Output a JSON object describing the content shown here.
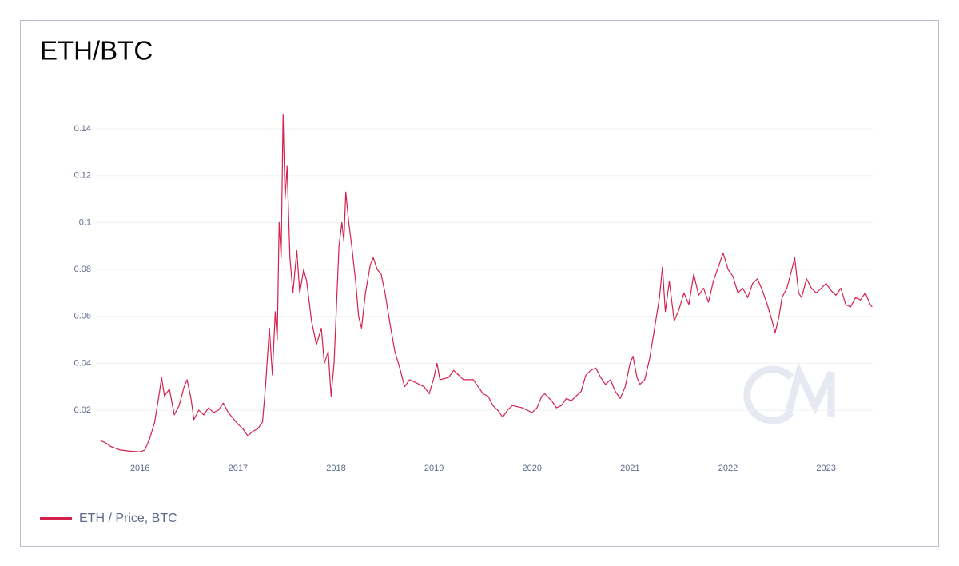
{
  "chart_data": {
    "type": "line",
    "title": "ETH/BTC",
    "xlim": [
      2015.55,
      2023.5
    ],
    "xticks": [
      2016,
      2017,
      2018,
      2019,
      2020,
      2021,
      2022,
      2023
    ],
    "ylim": [
      0,
      0.15
    ],
    "yticks": [
      0.02,
      0.04,
      0.06,
      0.08,
      0.1,
      0.12,
      0.14
    ],
    "grid": true,
    "legend": "bottom-left",
    "x": [
      2015.6,
      2015.65,
      2015.7,
      2015.8,
      2015.9,
      2016.0,
      2016.05,
      2016.1,
      2016.15,
      2016.2,
      2016.22,
      2016.25,
      2016.3,
      2016.35,
      2016.4,
      2016.45,
      2016.48,
      2016.52,
      2016.55,
      2016.6,
      2016.65,
      2016.7,
      2016.75,
      2016.8,
      2016.85,
      2016.9,
      2017.0,
      2017.05,
      2017.1,
      2017.15,
      2017.2,
      2017.25,
      2017.28,
      2017.32,
      2017.35,
      2017.38,
      2017.4,
      2017.42,
      2017.44,
      2017.46,
      2017.48,
      2017.5,
      2017.53,
      2017.56,
      2017.6,
      2017.63,
      2017.67,
      2017.7,
      2017.75,
      2017.8,
      2017.85,
      2017.88,
      2017.92,
      2017.95,
      2017.98,
      2018.0,
      2018.03,
      2018.06,
      2018.08,
      2018.1,
      2018.13,
      2018.16,
      2018.2,
      2018.23,
      2018.26,
      2018.3,
      2018.35,
      2018.38,
      2018.42,
      2018.46,
      2018.5,
      2018.55,
      2018.6,
      2018.65,
      2018.7,
      2018.75,
      2018.8,
      2018.9,
      2018.95,
      2019.0,
      2019.03,
      2019.06,
      2019.15,
      2019.2,
      2019.3,
      2019.4,
      2019.45,
      2019.5,
      2019.55,
      2019.6,
      2019.65,
      2019.7,
      2019.75,
      2019.8,
      2019.9,
      2020.0,
      2020.05,
      2020.1,
      2020.13,
      2020.2,
      2020.25,
      2020.3,
      2020.35,
      2020.4,
      2020.45,
      2020.5,
      2020.55,
      2020.6,
      2020.65,
      2020.7,
      2020.75,
      2020.8,
      2020.85,
      2020.9,
      2020.95,
      2021.0,
      2021.03,
      2021.07,
      2021.1,
      2021.15,
      2021.2,
      2021.25,
      2021.3,
      2021.33,
      2021.36,
      2021.4,
      2021.45,
      2021.5,
      2021.55,
      2021.6,
      2021.65,
      2021.7,
      2021.75,
      2021.8,
      2021.85,
      2021.9,
      2021.95,
      2022.0,
      2022.05,
      2022.1,
      2022.15,
      2022.2,
      2022.25,
      2022.3,
      2022.35,
      2022.4,
      2022.45,
      2022.48,
      2022.52,
      2022.55,
      2022.6,
      2022.65,
      2022.68,
      2022.72,
      2022.75,
      2022.8,
      2022.85,
      2022.9,
      2022.95,
      2023.0,
      2023.05,
      2023.1,
      2023.15,
      2023.2,
      2023.25,
      2023.3,
      2023.35,
      2023.4,
      2023.45,
      2023.47
    ],
    "series": [
      {
        "name": "ETH / Price, BTC",
        "color": "#d6204e",
        "values": [
          0.007,
          0.006,
          0.0045,
          0.003,
          0.0025,
          0.0022,
          0.003,
          0.008,
          0.015,
          0.028,
          0.034,
          0.026,
          0.029,
          0.018,
          0.022,
          0.03,
          0.033,
          0.025,
          0.016,
          0.02,
          0.018,
          0.021,
          0.019,
          0.02,
          0.023,
          0.019,
          0.014,
          0.012,
          0.009,
          0.011,
          0.012,
          0.015,
          0.03,
          0.055,
          0.035,
          0.062,
          0.05,
          0.1,
          0.085,
          0.146,
          0.11,
          0.124,
          0.085,
          0.07,
          0.088,
          0.07,
          0.08,
          0.075,
          0.058,
          0.048,
          0.055,
          0.04,
          0.045,
          0.026,
          0.04,
          0.06,
          0.09,
          0.1,
          0.092,
          0.113,
          0.1,
          0.09,
          0.075,
          0.06,
          0.055,
          0.07,
          0.082,
          0.085,
          0.08,
          0.078,
          0.07,
          0.057,
          0.045,
          0.038,
          0.03,
          0.033,
          0.032,
          0.03,
          0.027,
          0.034,
          0.04,
          0.033,
          0.034,
          0.037,
          0.033,
          0.033,
          0.03,
          0.027,
          0.026,
          0.022,
          0.02,
          0.017,
          0.02,
          0.022,
          0.021,
          0.019,
          0.021,
          0.026,
          0.027,
          0.024,
          0.021,
          0.022,
          0.025,
          0.024,
          0.026,
          0.028,
          0.035,
          0.037,
          0.038,
          0.034,
          0.031,
          0.033,
          0.028,
          0.025,
          0.03,
          0.04,
          0.043,
          0.034,
          0.031,
          0.033,
          0.042,
          0.055,
          0.068,
          0.081,
          0.062,
          0.075,
          0.058,
          0.063,
          0.07,
          0.065,
          0.078,
          0.069,
          0.072,
          0.066,
          0.075,
          0.081,
          0.087,
          0.08,
          0.077,
          0.07,
          0.072,
          0.068,
          0.074,
          0.076,
          0.071,
          0.065,
          0.058,
          0.053,
          0.06,
          0.068,
          0.072,
          0.08,
          0.085,
          0.07,
          0.068,
          0.076,
          0.072,
          0.07,
          0.072,
          0.074,
          0.071,
          0.069,
          0.072,
          0.065,
          0.064,
          0.068,
          0.067,
          0.07,
          0.065,
          0.064
        ]
      }
    ]
  }
}
